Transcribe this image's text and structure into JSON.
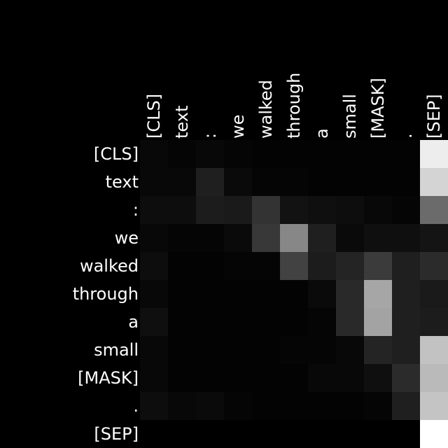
{
  "chart_data": {
    "type": "heatmap",
    "x_labels": [
      "[CLS]",
      "text",
      ":",
      "we",
      "walked",
      "through",
      "a",
      "small",
      "[MASK]",
      ".",
      "[SEP]"
    ],
    "y_labels": [
      "[CLS]",
      "text",
      ":",
      "we",
      "walked",
      "through",
      "a",
      "small",
      "[MASK]",
      ".",
      "[SEP]"
    ],
    "colormap": "grayscale (black = low, white = high)",
    "value_range": [
      0,
      1
    ],
    "values": [
      [
        0.03,
        0.02,
        0.03,
        0.02,
        0.01,
        0.01,
        0.01,
        0.01,
        0.01,
        0.01,
        0.93
      ],
      [
        0.03,
        0.03,
        0.12,
        0.04,
        0.02,
        0.02,
        0.01,
        0.01,
        0.01,
        0.01,
        0.83
      ],
      [
        0.05,
        0.05,
        0.11,
        0.1,
        0.2,
        0.07,
        0.06,
        0.05,
        0.03,
        0.02,
        0.42
      ],
      [
        0.03,
        0.02,
        0.02,
        0.04,
        0.22,
        0.53,
        0.12,
        0.04,
        0.06,
        0.06,
        0.08
      ],
      [
        0.05,
        0.01,
        0.01,
        0.02,
        0.02,
        0.26,
        0.11,
        0.14,
        0.23,
        0.12,
        0.17
      ],
      [
        0.03,
        0.01,
        0.01,
        0.01,
        0.01,
        0.01,
        0.04,
        0.16,
        0.65,
        0.12,
        0.1
      ],
      [
        0.06,
        0.01,
        0.01,
        0.01,
        0.01,
        0.01,
        0.02,
        0.16,
        0.64,
        0.12,
        0.11
      ],
      [
        0.03,
        0.01,
        0.01,
        0.01,
        0.01,
        0.02,
        0.02,
        0.03,
        0.14,
        0.12,
        0.76
      ],
      [
        0.03,
        0.01,
        0.01,
        0.01,
        0.01,
        0.01,
        0.03,
        0.03,
        0.06,
        0.17,
        0.73
      ],
      [
        0.05,
        0.03,
        0.04,
        0.02,
        0.01,
        0.01,
        0.01,
        0.01,
        0.02,
        0.12,
        0.77
      ],
      [
        0.0,
        0.0,
        0.0,
        0.0,
        0.0,
        0.0,
        0.0,
        0.0,
        0.0,
        0.0,
        1.0
      ]
    ]
  }
}
